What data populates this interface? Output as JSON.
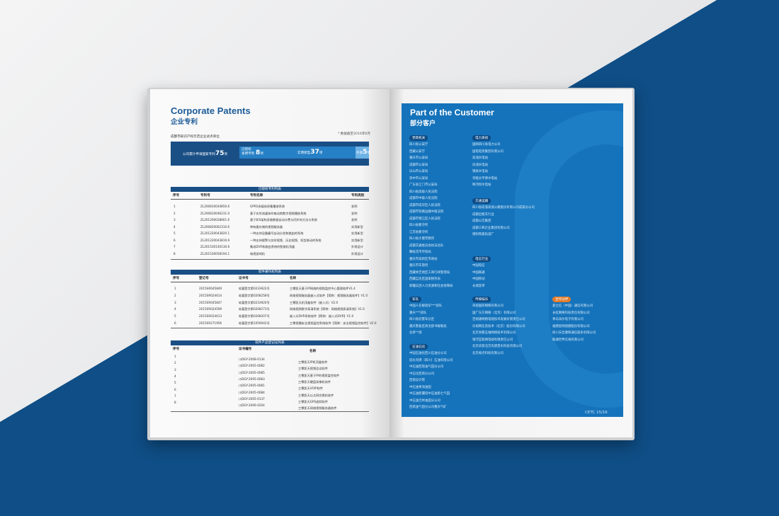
{
  "colors": {
    "brand_blue": "#1a4f86",
    "panel_blue": "#1573bb",
    "accent_orange": "#e27a2a"
  },
  "left": {
    "title_en": "Corporate Patents",
    "title_zh": "企业专利",
    "subtitle": "成都市知识产权示范企业试点单位",
    "note": "* 数据截至2016年6月",
    "stats": {
      "total_label": "公司累计申请国家专利",
      "total": "75",
      "total_unit": "项",
      "granted_label1": "已授权",
      "granted_label2": "发明专利",
      "invention": "8",
      "invention_unit": "项",
      "utility_label": "实用新型",
      "utility": "37",
      "utility_unit": "项",
      "design_label": "外观",
      "design": "5",
      "design_unit": "项"
    },
    "patents": {
      "title": "已授权专利列表",
      "headers": [
        "序号",
        "专利号",
        "专利名称",
        "专利类别"
      ],
      "rows": [
        [
          "1",
          "ZL200810044850.6",
          "GPRS多媒体采集播放系统",
          "发明"
        ],
        [
          "2",
          "ZL200810046231.0",
          "基于实时流媒体的电动商数字视频播放系统",
          "发明"
        ],
        [
          "3",
          "ZL201200028661.6",
          "基于B/S架构多路数据自动计费与同步的方法与系统",
          "发明"
        ],
        [
          "4",
          "ZL200820062310.6",
          "带有缓存储的视频服务器",
          "实用新型"
        ],
        [
          "5",
          "ZL201220043820.1",
          "一种支持设备编号自动分发和路由的系统",
          "实用新型"
        ],
        [
          "6",
          "ZL201220043819.9",
          "一种支持搜警与实时视频、历史视频、短信联动的系统",
          "实用新型"
        ],
        [
          "7",
          "ZL201530140130.6",
          "集成DVR和路由系统的智能机顶盒",
          "外观设计"
        ],
        [
          "8",
          "ZL201530058194.1",
          "电视游戏机",
          "外观设计"
        ]
      ]
    },
    "software": {
      "title": "软件著作权列表",
      "headers": [
        "序号",
        "登记号",
        "证书号",
        "名称"
      ],
      "rows": [
        [
          "1",
          "2015SR045849",
          "软著登字第0233922号",
          "三零凯天基于IP网络的视频监控中心管理软件V1.4"
        ],
        [
          "2",
          "2015SR024614",
          "软著登字第0208258号",
          "网络视频服务器嵌入式软件【简称：视频服务器软件】V1.0"
        ],
        [
          "3",
          "2015SR045847",
          "软著登字第0233920号",
          "三零凯天机顶盒软件（嵌入式）V2.0"
        ],
        [
          "4",
          "2015SR024599",
          "软著登字第0208273号",
          "网络视频数字高清系统【简称：网络视频高清系统】V1.0"
        ],
        [
          "5",
          "2015SR024613",
          "软著登字第0208207号",
          "嵌入式DVR系统软件【简称：嵌入式DVR】V1.0"
        ],
        [
          "6",
          "2015SR271956",
          "软著登字第1059042号",
          "三零视播安全视频监控系统软件【简称：安全视频监控软件】V2.0"
        ]
      ]
    },
    "products": {
      "title": "软件产品登记证列表",
      "headers": [
        "序号",
        "证书编号",
        "名称"
      ],
      "rows": [
        [
          "1",
          "川DGY-2008-0134",
          "三零凯天IP机顶盒软件"
        ],
        [
          "2",
          "川DGY-2005-0082",
          "三零凯天视频会议软件"
        ],
        [
          "3",
          "川DGY-2005-0085",
          "三零凯天基于IP的视频监控软件"
        ],
        [
          "4",
          "川DGY-2005-0083",
          "三零凯天硬盘录像机软件"
        ],
        [
          "5",
          "川DGY-2005-0081",
          "三零凯天VOIP软件"
        ],
        [
          "6",
          "川DGY-2005-0084",
          "三零凯天以太网交换机软件"
        ],
        [
          "7",
          "川DGY-2005-0137",
          "三零凯天GPS追踪软件"
        ],
        [
          "8",
          "川DGY-2006-0204",
          "三零凯天网络视频服务器软件"
        ]
      ]
    }
  },
  "right": {
    "title_en": "Part of the Customer",
    "title_zh": "部分客户",
    "footer": "CETC 15/16",
    "groups": {
      "government": {
        "label": "党政机关",
        "items": [
          "四川省公安厅",
          "西藏公安厅",
          "重庆市公安局",
          "成都市公安局",
          "乐山市公安局",
          "资中市公安局",
          "广东省江门市公安局",
          "四川省高级人民法院",
          "成都市中级人民法院",
          "成都市成华区人民法院",
          "成都市铁路运输中级法院",
          "成都市锦江区人民法院",
          "四川省看守所",
          "江苏省看守所",
          "四川省大健劳教所",
          "成都交通委员会执法总队",
          "攀枝花市环保局",
          "重庆市高新区市政局",
          "重庆市车管所",
          "西藏林芝地区工商行政管理局",
          "西藏自治区国家税务局",
          "新疆兵团人力资源和社会保障局"
        ]
      },
      "power": {
        "label": "电力系统",
        "items": [
          "国网四川省电力公司",
          "国电电资集团有限公司",
          "双浦水电站",
          "凤浦水电站",
          "锦屏水电站",
          "华能太平驿水电站",
          "映河坝水电站"
        ]
      },
      "transport": {
        "label": "交通运输",
        "items": [
          "四川省成渝高速公路股份有限公司成渝分公司",
          "成都出租车行业",
          "成都公交集团",
          "成都三和企业集团有限公司",
          "德阳铁路轨道厂"
        ]
      },
      "telecom": {
        "label": "电信行业",
        "items": [
          "中国电信",
          "中国联通",
          "中国移动",
          "长城宽带"
        ]
      },
      "military": {
        "label": "军队",
        "items": [
          "中国人名解放军***部队",
          "重庆***部队",
          "四川省武警军分区",
          "重庆警备区政治部书群联处",
          "总参**部"
        ]
      },
      "petro": {
        "label": "石油石化",
        "items": [
          "中国石油化西川石油分公司",
          "延长壳牌（四川）石油有限公司",
          "中石油西南油气田分公司",
          "中石化西南分公司",
          "西南设计院",
          "中石油青海油田",
          "中石油新疆塔中石油第七气田",
          "中石油吉林油田分公司",
          "西南油气田分公司重庆气矿"
        ]
      },
      "media": {
        "label": "传媒娱乐",
        "items": [
          "央视国际网络有限公司",
          "国广东方网络（北京）有限公司",
          "百视通网络电视技术发展有限责任公司",
          "乐视网信息技术（北京）股份有限公司",
          "北京易都五维网络技术有限公司",
          "银河互联网电视有限责任公司",
          "北京优朋北京优朋普乐科技有限公司",
          "北京视点科技有限公司"
        ]
      },
      "partners": {
        "label": "合作伙伴",
        "items": [
          "爱立信（中国）通信有限公司",
          "长虹网络科技责任有限公司",
          "青岛海尔电子有限公司",
          "福建星网锐捷股份有限公司",
          "四川天邑康和通信股份有限公司",
          "联通世界在线有限公司"
        ]
      }
    }
  }
}
